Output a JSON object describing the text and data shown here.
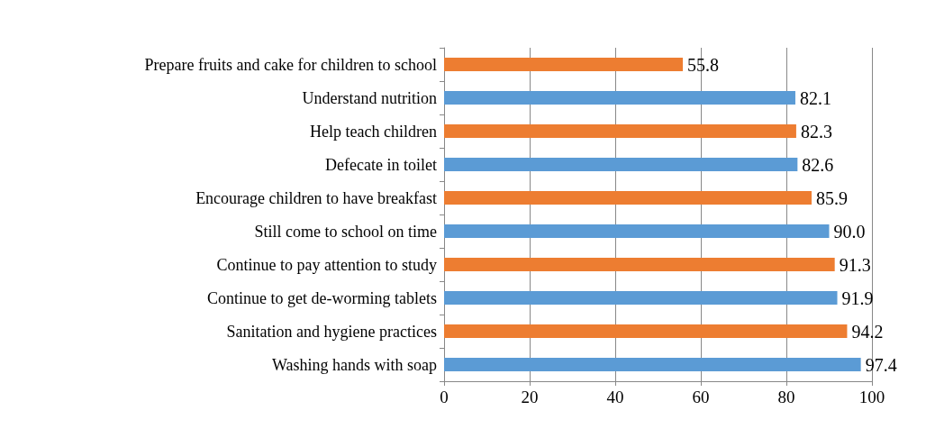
{
  "chart_data": {
    "type": "bar",
    "orientation": "horizontal",
    "categories": [
      "Prepare fruits and cake for children to school",
      "Understand nutrition",
      "Help teach children",
      "Defecate in toilet",
      "Encourage children to have breakfast",
      "Still come to school on time",
      "Continue to pay attention to study",
      "Continue to get de-worming tablets",
      "Sanitation and hygiene practices",
      "Washing hands with soap"
    ],
    "values": [
      55.8,
      82.1,
      82.3,
      82.6,
      85.9,
      90.0,
      91.3,
      91.9,
      94.2,
      97.4
    ],
    "value_labels": [
      "55.8",
      "82.1",
      "82.3",
      "82.6",
      "85.9",
      "90.0",
      "91.3",
      "91.9",
      "94.2",
      "97.4"
    ],
    "colors": [
      "#ed7d31",
      "#5b9bd5",
      "#ed7d31",
      "#5b9bd5",
      "#ed7d31",
      "#5b9bd5",
      "#ed7d31",
      "#5b9bd5",
      "#ed7d31",
      "#5b9bd5"
    ],
    "xlim": [
      0,
      100
    ],
    "xticks": [
      0,
      20,
      40,
      60,
      80,
      100
    ],
    "grid": "x"
  }
}
